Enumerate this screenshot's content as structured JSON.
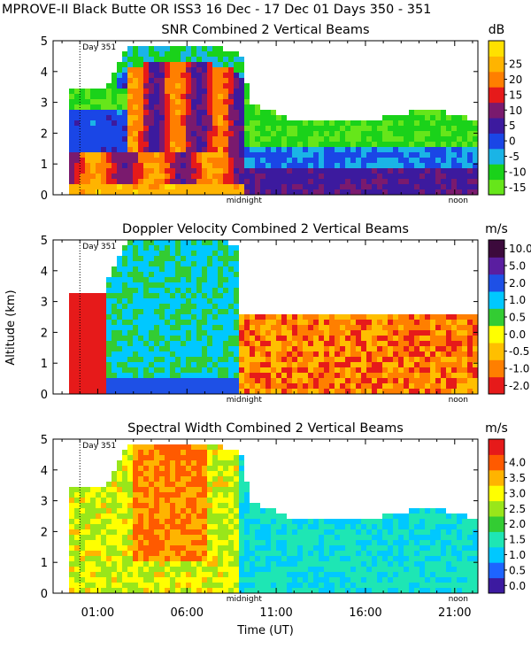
{
  "header": "MPROVE-II  Black Butte OR  ISS3  16 Dec - 17 Dec 01 Days 350 - 351",
  "y_axis_label": "Altitude (km)",
  "x_axis_label": "Time (UT)",
  "x_tick_labels": [
    "01:00",
    "06:00",
    "11:00",
    "16:00",
    "21:00"
  ],
  "y_tick_labels": [
    "0",
    "1",
    "2",
    "3",
    "4",
    "5"
  ],
  "day_marker": "Day 351",
  "midnight_label": "midnight",
  "noon_label": "noon",
  "colors": {
    "snr": [
      "#66e61a",
      "#1ad21a",
      "#1ab4e6",
      "#1a46e6",
      "#3c1a9e",
      "#7a1a6e",
      "#e61a1a",
      "#ff7f00",
      "#ffb400",
      "#ffe100"
    ],
    "doppler": [
      "#e61a1a",
      "#ff7f00",
      "#ffbf00",
      "#ffff00",
      "#33cc33",
      "#00c8ff",
      "#1e50e6",
      "#5a1ea0",
      "#3c0a3c"
    ],
    "width": [
      "#3c1aa0",
      "#1e64ff",
      "#00c8ff",
      "#1ee6b4",
      "#33cc33",
      "#99e61a",
      "#ffff00",
      "#ffb400",
      "#ff5a00",
      "#e61a1a"
    ]
  },
  "chart_data": [
    {
      "type": "heatmap",
      "title": "SNR Combined 2 Vertical Beams",
      "xlabel": "Time (UT)",
      "ylabel": "Altitude (km)",
      "xlim": [
        -1.5,
        22.3
      ],
      "ylim": [
        0,
        5
      ],
      "x_ticks": [
        1,
        6,
        11,
        16,
        21
      ],
      "units": "dB",
      "colorbar_ticks": [
        -15,
        -10,
        -5,
        0,
        5,
        10,
        15,
        20,
        25
      ],
      "colorbar_range": [
        -17.5,
        32.5
      ],
      "features": [
        {
          "time": [
            -0.5,
            9.2
          ],
          "alt": [
            0.1,
            1.4
          ],
          "value": 25
        },
        {
          "time": [
            3.0,
            9.0
          ],
          "alt": [
            1.0,
            4.8
          ],
          "value": 20
        },
        {
          "time": [
            9.2,
            22.0
          ],
          "alt": [
            0.1,
            1.0
          ],
          "value": 5
        },
        {
          "time": [
            11.0,
            22.0
          ],
          "alt": [
            1.0,
            2.2
          ],
          "value": -5
        },
        {
          "time": [
            -0.5,
            9.0
          ],
          "alt": [
            2.8,
            3.6
          ],
          "value": -10
        },
        {
          "time": [
            8.0,
            21.0
          ],
          "alt": [
            2.6,
            3.4
          ],
          "value": -12
        }
      ]
    },
    {
      "type": "heatmap",
      "title": "Doppler Velocity Combined 2 Vertical Beams",
      "xlabel": "Time (UT)",
      "ylabel": "Altitude (km)",
      "xlim": [
        -1.5,
        22.3
      ],
      "ylim": [
        0,
        5
      ],
      "x_ticks": [
        1,
        6,
        11,
        16,
        21
      ],
      "units": "m/s",
      "colorbar_ticks": [
        -2.0,
        -1.0,
        -0.5,
        0.0,
        0.5,
        1.0,
        2.0,
        5.0,
        10.0
      ],
      "colorbar_tick_labels": [
        "-2.0",
        "-1.0",
        "-0.5",
        "0.0",
        "0.5",
        "1.0",
        "2.0",
        "5.0",
        "10.0"
      ],
      "features": [
        {
          "time": [
            -0.5,
            1.5
          ],
          "alt": [
            0,
            3.3
          ],
          "value": -2.0
        },
        {
          "time": [
            1.5,
            9.0
          ],
          "alt": [
            0,
            0.6
          ],
          "value": 2.0
        },
        {
          "time": [
            2.5,
            9.0
          ],
          "alt": [
            0.6,
            5.0
          ],
          "value": 1.0
        },
        {
          "time": [
            9.0,
            22.0
          ],
          "alt": [
            0,
            2.5
          ],
          "value": -0.5
        }
      ]
    },
    {
      "type": "heatmap",
      "title": "Spectral Width Combined 2 Vertical Beams",
      "xlabel": "Time (UT)",
      "ylabel": "Altitude (km)",
      "xlim": [
        -1.5,
        22.3
      ],
      "ylim": [
        0,
        5
      ],
      "x_ticks": [
        1,
        6,
        11,
        16,
        21
      ],
      "units": "m/s",
      "colorbar_ticks": [
        0.0,
        0.5,
        1.0,
        1.5,
        2.0,
        2.5,
        3.0,
        3.5,
        4.0
      ],
      "colorbar_tick_labels": [
        "0.0",
        "0.5",
        "1.0",
        "1.5",
        "2.0",
        "2.5",
        "3.0",
        "3.5",
        "4.0"
      ],
      "features": [
        {
          "time": [
            3.0,
            7.0
          ],
          "alt": [
            1.0,
            5.0
          ],
          "value": 4.0
        },
        {
          "time": [
            -0.5,
            9.0
          ],
          "alt": [
            0.3,
            3.2
          ],
          "value": 3.0
        },
        {
          "time": [
            9.0,
            22.0
          ],
          "alt": [
            0.2,
            2.3
          ],
          "value": 1.5
        }
      ]
    }
  ]
}
